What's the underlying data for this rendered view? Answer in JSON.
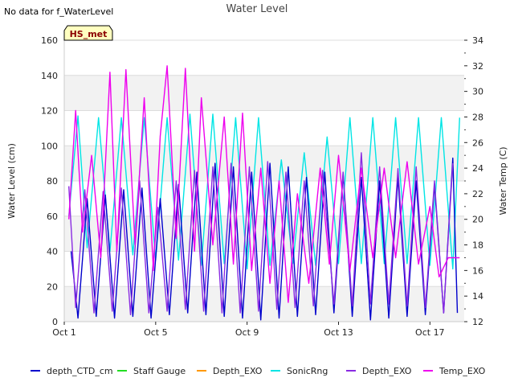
{
  "chart_data": {
    "type": "line",
    "title": "Water Level",
    "subtitle": "No data for f_WaterLevel",
    "station_label": "HS_met",
    "ylabel": "Water Level (cm)",
    "y2label": "Water Temp (C)",
    "ylim": [
      0,
      160
    ],
    "yticks": [
      0,
      20,
      40,
      60,
      80,
      100,
      120,
      140,
      160
    ],
    "y2lim": [
      12,
      34
    ],
    "y2ticks": [
      12,
      14,
      16,
      18,
      20,
      22,
      24,
      26,
      28,
      30,
      32,
      34
    ],
    "xlim_days": [
      1,
      18.5
    ],
    "xticks": [
      {
        "day": 1,
        "label": "Oct 1"
      },
      {
        "day": 5,
        "label": "Oct 5"
      },
      {
        "day": 9,
        "label": "Oct 9"
      },
      {
        "day": 13,
        "label": "Oct 13"
      },
      {
        "day": 17,
        "label": "Oct 17"
      }
    ],
    "legend": [
      {
        "name": "depth_CTD_cm",
        "color": "#0000cc"
      },
      {
        "name": "Staff Gauge",
        "color": "#22dd22"
      },
      {
        "name": "Depth_EXO",
        "color": "#ff9900"
      },
      {
        "name": "SonicRng",
        "color": "#00e5e5"
      },
      {
        "name": "Depth_EXO",
        "color": "#8a2be2"
      },
      {
        "name": "Temp_EXO",
        "color": "#ee00ee"
      }
    ],
    "series": [
      {
        "name": "SonicRng",
        "axis": "left",
        "color": "#00e5e5",
        "day": [
          1.2,
          1.6,
          2.0,
          2.5,
          3.0,
          3.5,
          4.0,
          4.5,
          5.0,
          5.5,
          6.0,
          6.5,
          7.0,
          7.5,
          8.0,
          8.5,
          9.0,
          9.5,
          10.0,
          10.5,
          11.0,
          11.5,
          12.0,
          12.5,
          13.0,
          13.5,
          14.0,
          14.5,
          15.0,
          15.5,
          16.0,
          16.5,
          17.0,
          17.5,
          18.0,
          18.3
        ],
        "values": [
          60,
          117,
          42,
          116,
          40,
          116,
          38,
          116,
          35,
          116,
          35,
          118,
          32,
          118,
          33,
          116,
          30,
          116,
          32,
          92,
          33,
          96,
          32,
          105,
          33,
          116,
          33,
          116,
          33,
          116,
          33,
          116,
          32,
          116,
          30,
          116
        ]
      },
      {
        "name": "depth_CTD_cm",
        "axis": "left",
        "color": "#0000cc",
        "day": [
          1.3,
          1.6,
          2.0,
          2.4,
          2.8,
          3.2,
          3.6,
          4.0,
          4.4,
          4.8,
          5.2,
          5.6,
          6.0,
          6.4,
          6.8,
          7.2,
          7.6,
          8.0,
          8.4,
          8.8,
          9.2,
          9.6,
          10.0,
          10.4,
          10.8,
          11.2,
          11.6,
          12.0,
          12.4,
          12.8,
          13.2,
          13.6,
          14.0,
          14.4,
          14.8,
          15.2,
          15.6,
          16.0,
          16.4,
          16.8,
          17.2,
          17.6,
          18.0,
          18.2
        ],
        "values": [
          40,
          2,
          70,
          3,
          72,
          2,
          75,
          3,
          76,
          2,
          70,
          4,
          78,
          5,
          85,
          4,
          90,
          3,
          88,
          2,
          85,
          1,
          90,
          2,
          88,
          3,
          82,
          4,
          85,
          5,
          84,
          3,
          82,
          1,
          80,
          2,
          82,
          3,
          80,
          4,
          78,
          5,
          93,
          5
        ]
      },
      {
        "name": "Depth_EXO",
        "axis": "left",
        "color": "#8a2be2",
        "day": [
          1.2,
          1.5,
          1.9,
          2.3,
          2.7,
          3.1,
          3.5,
          3.9,
          4.3,
          4.7,
          5.1,
          5.5,
          5.9,
          6.3,
          6.7,
          7.1,
          7.5,
          7.9,
          8.3,
          8.7,
          9.1,
          9.5,
          9.9,
          10.3,
          10.7,
          11.1,
          11.5,
          11.9,
          12.3,
          12.8,
          13.2,
          13.6,
          14.0,
          14.4,
          14.8,
          15.2,
          15.6,
          16.0,
          16.4,
          16.8,
          17.2,
          17.6,
          18.0
        ],
        "values": [
          77,
          8,
          75,
          5,
          74,
          6,
          76,
          4,
          80,
          5,
          65,
          6,
          80,
          7,
          86,
          6,
          88,
          5,
          90,
          5,
          88,
          6,
          91,
          7,
          85,
          8,
          80,
          9,
          86,
          10,
          85,
          9,
          96,
          10,
          88,
          10,
          87,
          9,
          88,
          8,
          80,
          5,
          90
        ]
      },
      {
        "name": "Temp_EXO",
        "axis": "right",
        "color": "#ee00ee",
        "day": [
          1.2,
          1.5,
          1.8,
          2.2,
          2.6,
          3.0,
          3.3,
          3.7,
          4.1,
          4.5,
          4.9,
          5.2,
          5.5,
          5.9,
          6.3,
          6.7,
          7.0,
          7.5,
          8.0,
          8.4,
          8.8,
          9.2,
          9.6,
          10.0,
          10.4,
          10.8,
          11.2,
          11.7,
          12.2,
          12.6,
          13.0,
          13.5,
          14.0,
          14.5,
          15.0,
          15.5,
          16.0,
          16.5,
          17.0,
          17.4,
          17.8,
          18.3
        ],
        "values": [
          20,
          28.5,
          19,
          25,
          17,
          31.5,
          17.5,
          31.7,
          18,
          29.5,
          16,
          26.5,
          32,
          18.5,
          31.8,
          17.5,
          29.5,
          18,
          28,
          16.5,
          28.3,
          16,
          24,
          15,
          23,
          13.5,
          22,
          15,
          24,
          16.5,
          25,
          16,
          24,
          17,
          24,
          17,
          24.5,
          16.5,
          21,
          15.5,
          17,
          17
        ]
      }
    ]
  }
}
